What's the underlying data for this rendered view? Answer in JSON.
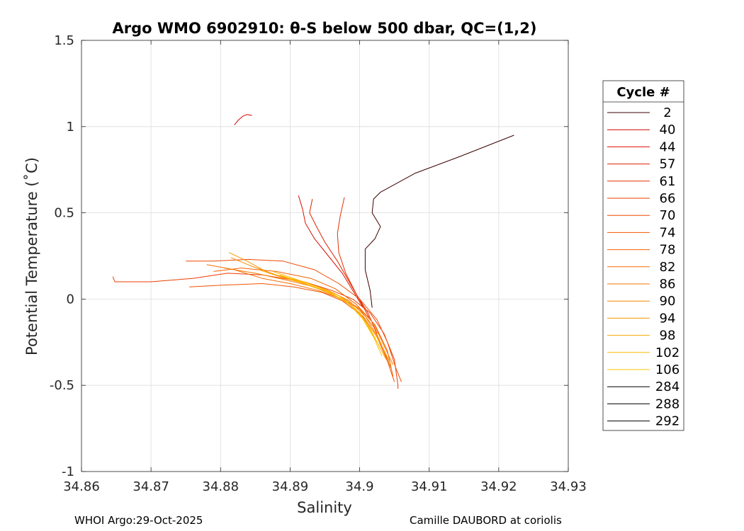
{
  "chart_data": {
    "type": "line",
    "title": "Argo WMO 6902910: θ-S below 500 dbar,  QC=(1,2)",
    "xlabel": "Salinity",
    "ylabel": "Potential Temperature (˚C)",
    "xlim": [
      34.86,
      34.93
    ],
    "ylim": [
      -1,
      1.5
    ],
    "xticks": [
      34.86,
      34.87,
      34.88,
      34.89,
      34.9,
      34.91,
      34.92,
      34.93
    ],
    "xtick_labels": [
      "34.86",
      "34.87",
      "34.88",
      "34.89",
      "34.9",
      "34.91",
      "34.92",
      "34.93"
    ],
    "yticks": [
      -1,
      -0.5,
      0,
      0.5,
      1,
      1.5
    ],
    "ytick_labels": [
      "-1",
      "-0.5",
      "0",
      "0.5",
      "1",
      "1.5"
    ],
    "grid": true,
    "legend_title": "Cycle #",
    "legend_position": "right-outside",
    "series": [
      {
        "name": "2",
        "color": "#3c0000",
        "points": [
          [
            34.9222,
            0.95
          ],
          [
            34.914,
            0.82
          ],
          [
            34.908,
            0.73
          ],
          [
            34.903,
            0.62
          ],
          [
            34.902,
            0.58
          ],
          [
            34.9018,
            0.5
          ],
          [
            34.903,
            0.42
          ],
          [
            34.9022,
            0.35
          ],
          [
            34.9008,
            0.29
          ],
          [
            34.9008,
            0.17
          ],
          [
            34.9015,
            0.05
          ],
          [
            34.9018,
            -0.05
          ]
        ]
      },
      {
        "name": "40",
        "color": "#d00000",
        "points": [
          [
            34.882,
            1.01
          ],
          [
            34.8826,
            1.04
          ],
          [
            34.8832,
            1.06
          ],
          [
            34.8838,
            1.07
          ],
          [
            34.8845,
            1.065
          ]
        ]
      },
      {
        "name": "44",
        "color": "#d81000",
        "points": [
          [
            34.8912,
            0.6
          ],
          [
            34.8918,
            0.52
          ],
          [
            34.8922,
            0.44
          ],
          [
            34.8935,
            0.35
          ],
          [
            34.8955,
            0.25
          ],
          [
            34.8975,
            0.15
          ],
          [
            34.899,
            0.05
          ],
          [
            34.9005,
            -0.05
          ]
        ]
      },
      {
        "name": "57",
        "color": "#e02200",
        "points": [
          [
            34.8932,
            0.58
          ],
          [
            34.8928,
            0.5
          ],
          [
            34.8938,
            0.42
          ],
          [
            34.895,
            0.33
          ],
          [
            34.8968,
            0.22
          ],
          [
            34.8985,
            0.1
          ],
          [
            34.9002,
            -0.02
          ],
          [
            34.9015,
            -0.12
          ]
        ]
      },
      {
        "name": "61",
        "color": "#e63000",
        "points": [
          [
            34.8978,
            0.59
          ],
          [
            34.8972,
            0.48
          ],
          [
            34.8968,
            0.38
          ],
          [
            34.897,
            0.27
          ],
          [
            34.898,
            0.15
          ],
          [
            34.8995,
            0.03
          ],
          [
            34.9012,
            -0.08
          ],
          [
            34.9025,
            -0.2
          ]
        ]
      },
      {
        "name": "66",
        "color": "#ec3c00",
        "points": [
          [
            34.8645,
            0.13
          ],
          [
            34.8648,
            0.1
          ],
          [
            34.87,
            0.1
          ],
          [
            34.876,
            0.12
          ],
          [
            34.881,
            0.15
          ],
          [
            34.886,
            0.14
          ],
          [
            34.892,
            0.1
          ],
          [
            34.896,
            0.05
          ],
          [
            34.899,
            0.0
          ],
          [
            34.9015,
            -0.08
          ],
          [
            34.9035,
            -0.2
          ],
          [
            34.905,
            -0.35
          ],
          [
            34.9055,
            -0.5
          ],
          [
            34.9055,
            -0.52
          ]
        ]
      },
      {
        "name": "70",
        "color": "#f04800",
        "points": [
          [
            34.875,
            0.22
          ],
          [
            34.879,
            0.22
          ],
          [
            34.884,
            0.23
          ],
          [
            34.889,
            0.22
          ],
          [
            34.8935,
            0.17
          ],
          [
            34.897,
            0.09
          ],
          [
            34.9,
            0.0
          ],
          [
            34.9025,
            -0.12
          ],
          [
            34.904,
            -0.25
          ],
          [
            34.9052,
            -0.4
          ],
          [
            34.906,
            -0.48
          ]
        ]
      },
      {
        "name": "74",
        "color": "#f25400",
        "points": [
          [
            34.8755,
            0.07
          ],
          [
            34.88,
            0.08
          ],
          [
            34.886,
            0.09
          ],
          [
            34.8905,
            0.07
          ],
          [
            34.8945,
            0.04
          ],
          [
            34.8975,
            -0.01
          ],
          [
            34.9005,
            -0.1
          ],
          [
            34.9025,
            -0.22
          ],
          [
            34.904,
            -0.36
          ],
          [
            34.905,
            -0.48
          ]
        ]
      },
      {
        "name": "78",
        "color": "#f46000",
        "points": [
          [
            34.879,
            0.16
          ],
          [
            34.883,
            0.18
          ],
          [
            34.888,
            0.16
          ],
          [
            34.893,
            0.12
          ],
          [
            34.8965,
            0.06
          ],
          [
            34.8995,
            -0.03
          ],
          [
            34.9022,
            -0.15
          ],
          [
            34.904,
            -0.3
          ],
          [
            34.9048,
            -0.45
          ]
        ]
      },
      {
        "name": "82",
        "color": "#f66c00",
        "points": [
          [
            34.878,
            0.2
          ],
          [
            34.882,
            0.17
          ],
          [
            34.886,
            0.12
          ],
          [
            34.89,
            0.09
          ],
          [
            34.894,
            0.05
          ],
          [
            34.8975,
            0.0
          ],
          [
            34.9,
            -0.06
          ],
          [
            34.902,
            -0.16
          ],
          [
            34.9035,
            -0.3
          ],
          [
            34.9045,
            -0.4
          ]
        ]
      },
      {
        "name": "86",
        "color": "#f87800",
        "points": [
          [
            34.8805,
            0.18
          ],
          [
            34.885,
            0.15
          ],
          [
            34.8895,
            0.11
          ],
          [
            34.8935,
            0.07
          ],
          [
            34.897,
            0.02
          ],
          [
            34.8998,
            -0.05
          ],
          [
            34.902,
            -0.14
          ],
          [
            34.9035,
            -0.27
          ],
          [
            34.9048,
            -0.38
          ]
        ]
      },
      {
        "name": "90",
        "color": "#fa8800",
        "points": [
          [
            34.8815,
            0.24
          ],
          [
            34.8845,
            0.19
          ],
          [
            34.888,
            0.14
          ],
          [
            34.892,
            0.1
          ],
          [
            34.8955,
            0.05
          ],
          [
            34.8985,
            -0.01
          ],
          [
            34.9008,
            -0.1
          ],
          [
            34.9026,
            -0.22
          ],
          [
            34.904,
            -0.34
          ]
        ]
      },
      {
        "name": "94",
        "color": "#fb9800",
        "points": [
          [
            34.8812,
            0.27
          ],
          [
            34.8838,
            0.22
          ],
          [
            34.887,
            0.15
          ],
          [
            34.8905,
            0.11
          ],
          [
            34.894,
            0.06
          ],
          [
            34.8975,
            0.0
          ],
          [
            34.9,
            -0.08
          ],
          [
            34.9022,
            -0.2
          ],
          [
            34.9038,
            -0.32
          ],
          [
            34.9045,
            -0.38
          ]
        ]
      },
      {
        "name": "98",
        "color": "#fca800",
        "points": [
          [
            34.8855,
            0.17
          ],
          [
            34.8885,
            0.13
          ],
          [
            34.892,
            0.09
          ],
          [
            34.8955,
            0.04
          ],
          [
            34.8985,
            -0.03
          ],
          [
            34.9008,
            -0.13
          ],
          [
            34.9025,
            -0.25
          ],
          [
            34.9038,
            -0.35
          ]
        ]
      },
      {
        "name": "102",
        "color": "#fdb800",
        "points": [
          [
            34.8875,
            0.16
          ],
          [
            34.8905,
            0.12
          ],
          [
            34.894,
            0.07
          ],
          [
            34.897,
            0.02
          ],
          [
            34.8995,
            -0.06
          ],
          [
            34.9015,
            -0.17
          ],
          [
            34.903,
            -0.29
          ]
        ]
      },
      {
        "name": "106",
        "color": "#fec400",
        "points": [
          [
            34.8885,
            0.14
          ],
          [
            34.8915,
            0.1
          ],
          [
            34.895,
            0.05
          ],
          [
            34.898,
            -0.01
          ],
          [
            34.9002,
            -0.1
          ],
          [
            34.902,
            -0.22
          ],
          [
            34.9032,
            -0.33
          ]
        ]
      },
      {
        "name": "284",
        "color": "#000000",
        "points": []
      },
      {
        "name": "288",
        "color": "#000000",
        "points": []
      },
      {
        "name": "292",
        "color": "#000000",
        "points": []
      }
    ]
  },
  "footer": {
    "left": "WHOI Argo:29-Oct-2025",
    "right": "Camille DAUBORD at coriolis"
  }
}
